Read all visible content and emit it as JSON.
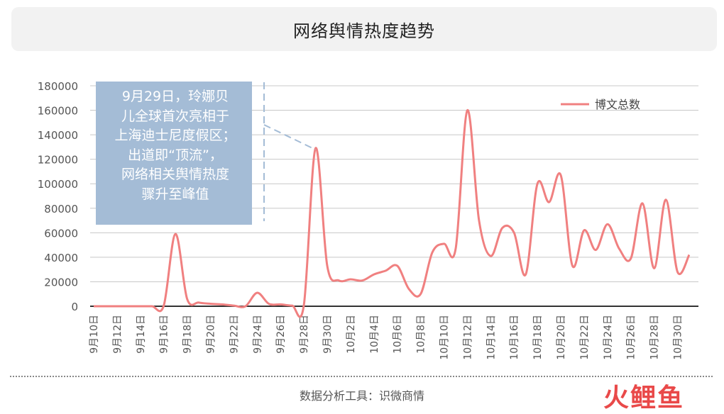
{
  "title": "网络舆情热度趋势",
  "footer": "数据分析工具：识微商情",
  "watermark": "火鲤鱼",
  "colors": {
    "line": "#f08080",
    "grid": "#c8c8c8",
    "annotation_bg": "#a4bcd6"
  },
  "chart_data": {
    "type": "line",
    "title": "网络舆情热度趋势",
    "ylim": [
      0,
      180000
    ],
    "yticks": [
      0,
      20000,
      40000,
      60000,
      80000,
      100000,
      120000,
      140000,
      160000,
      180000
    ],
    "grid": true,
    "legend_position": "top-right",
    "tick_labels": [
      "9月10日",
      "9月12日",
      "9月14日",
      "9月16日",
      "9月18日",
      "9月20日",
      "9月22日",
      "9月24日",
      "9月26日",
      "9月28日",
      "9月30日",
      "10月2日",
      "10月4日",
      "10月6日",
      "10月8日",
      "10月10日",
      "10月12日",
      "10月14日",
      "10月16日",
      "10月18日",
      "10月20日",
      "10月22日",
      "10月24日",
      "10月26日",
      "10月28日",
      "10月30日"
    ],
    "x": [
      "9月10日",
      "9月11日",
      "9月12日",
      "9月13日",
      "9月14日",
      "9月15日",
      "9月16日",
      "9月17日",
      "9月18日",
      "9月19日",
      "9月20日",
      "9月21日",
      "9月22日",
      "9月23日",
      "9月24日",
      "9月25日",
      "9月26日",
      "9月27日",
      "9月28日",
      "9月29日",
      "9月30日",
      "10月1日",
      "10月2日",
      "10月3日",
      "10月4日",
      "10月5日",
      "10月6日",
      "10月7日",
      "10月8日",
      "10月9日",
      "10月10日",
      "10月11日",
      "10月12日",
      "10月13日",
      "10月14日",
      "10月15日",
      "10月16日",
      "10月17日",
      "10月18日",
      "10月19日",
      "10月20日",
      "10月21日",
      "10月22日",
      "10月23日",
      "10月24日",
      "10月25日",
      "10月26日",
      "10月27日",
      "10月28日",
      "10月29日",
      "10月30日",
      "10月31日"
    ],
    "series": [
      {
        "name": "博文总数",
        "values": [
          0,
          0,
          0,
          0,
          0,
          0,
          500,
          59000,
          6000,
          3000,
          2000,
          1500,
          500,
          0,
          11000,
          2000,
          1500,
          500,
          1000,
          129000,
          33000,
          21000,
          22000,
          21000,
          26000,
          29000,
          33000,
          14000,
          10000,
          44000,
          51000,
          47000,
          160000,
          70000,
          41000,
          64000,
          60000,
          26000,
          100000,
          85000,
          107000,
          33000,
          62000,
          46000,
          67000,
          47000,
          39000,
          84000,
          31000,
          87000,
          28000,
          42000
        ]
      }
    ],
    "annotation": {
      "lines": [
        "9月29日，玲娜贝",
        "儿全球首次亮相于",
        "上海迪士尼度假区；",
        "出道即“顶流”，",
        "网络相关舆情热度",
        "骤升至峰值"
      ],
      "points_to": "9月29日"
    }
  }
}
